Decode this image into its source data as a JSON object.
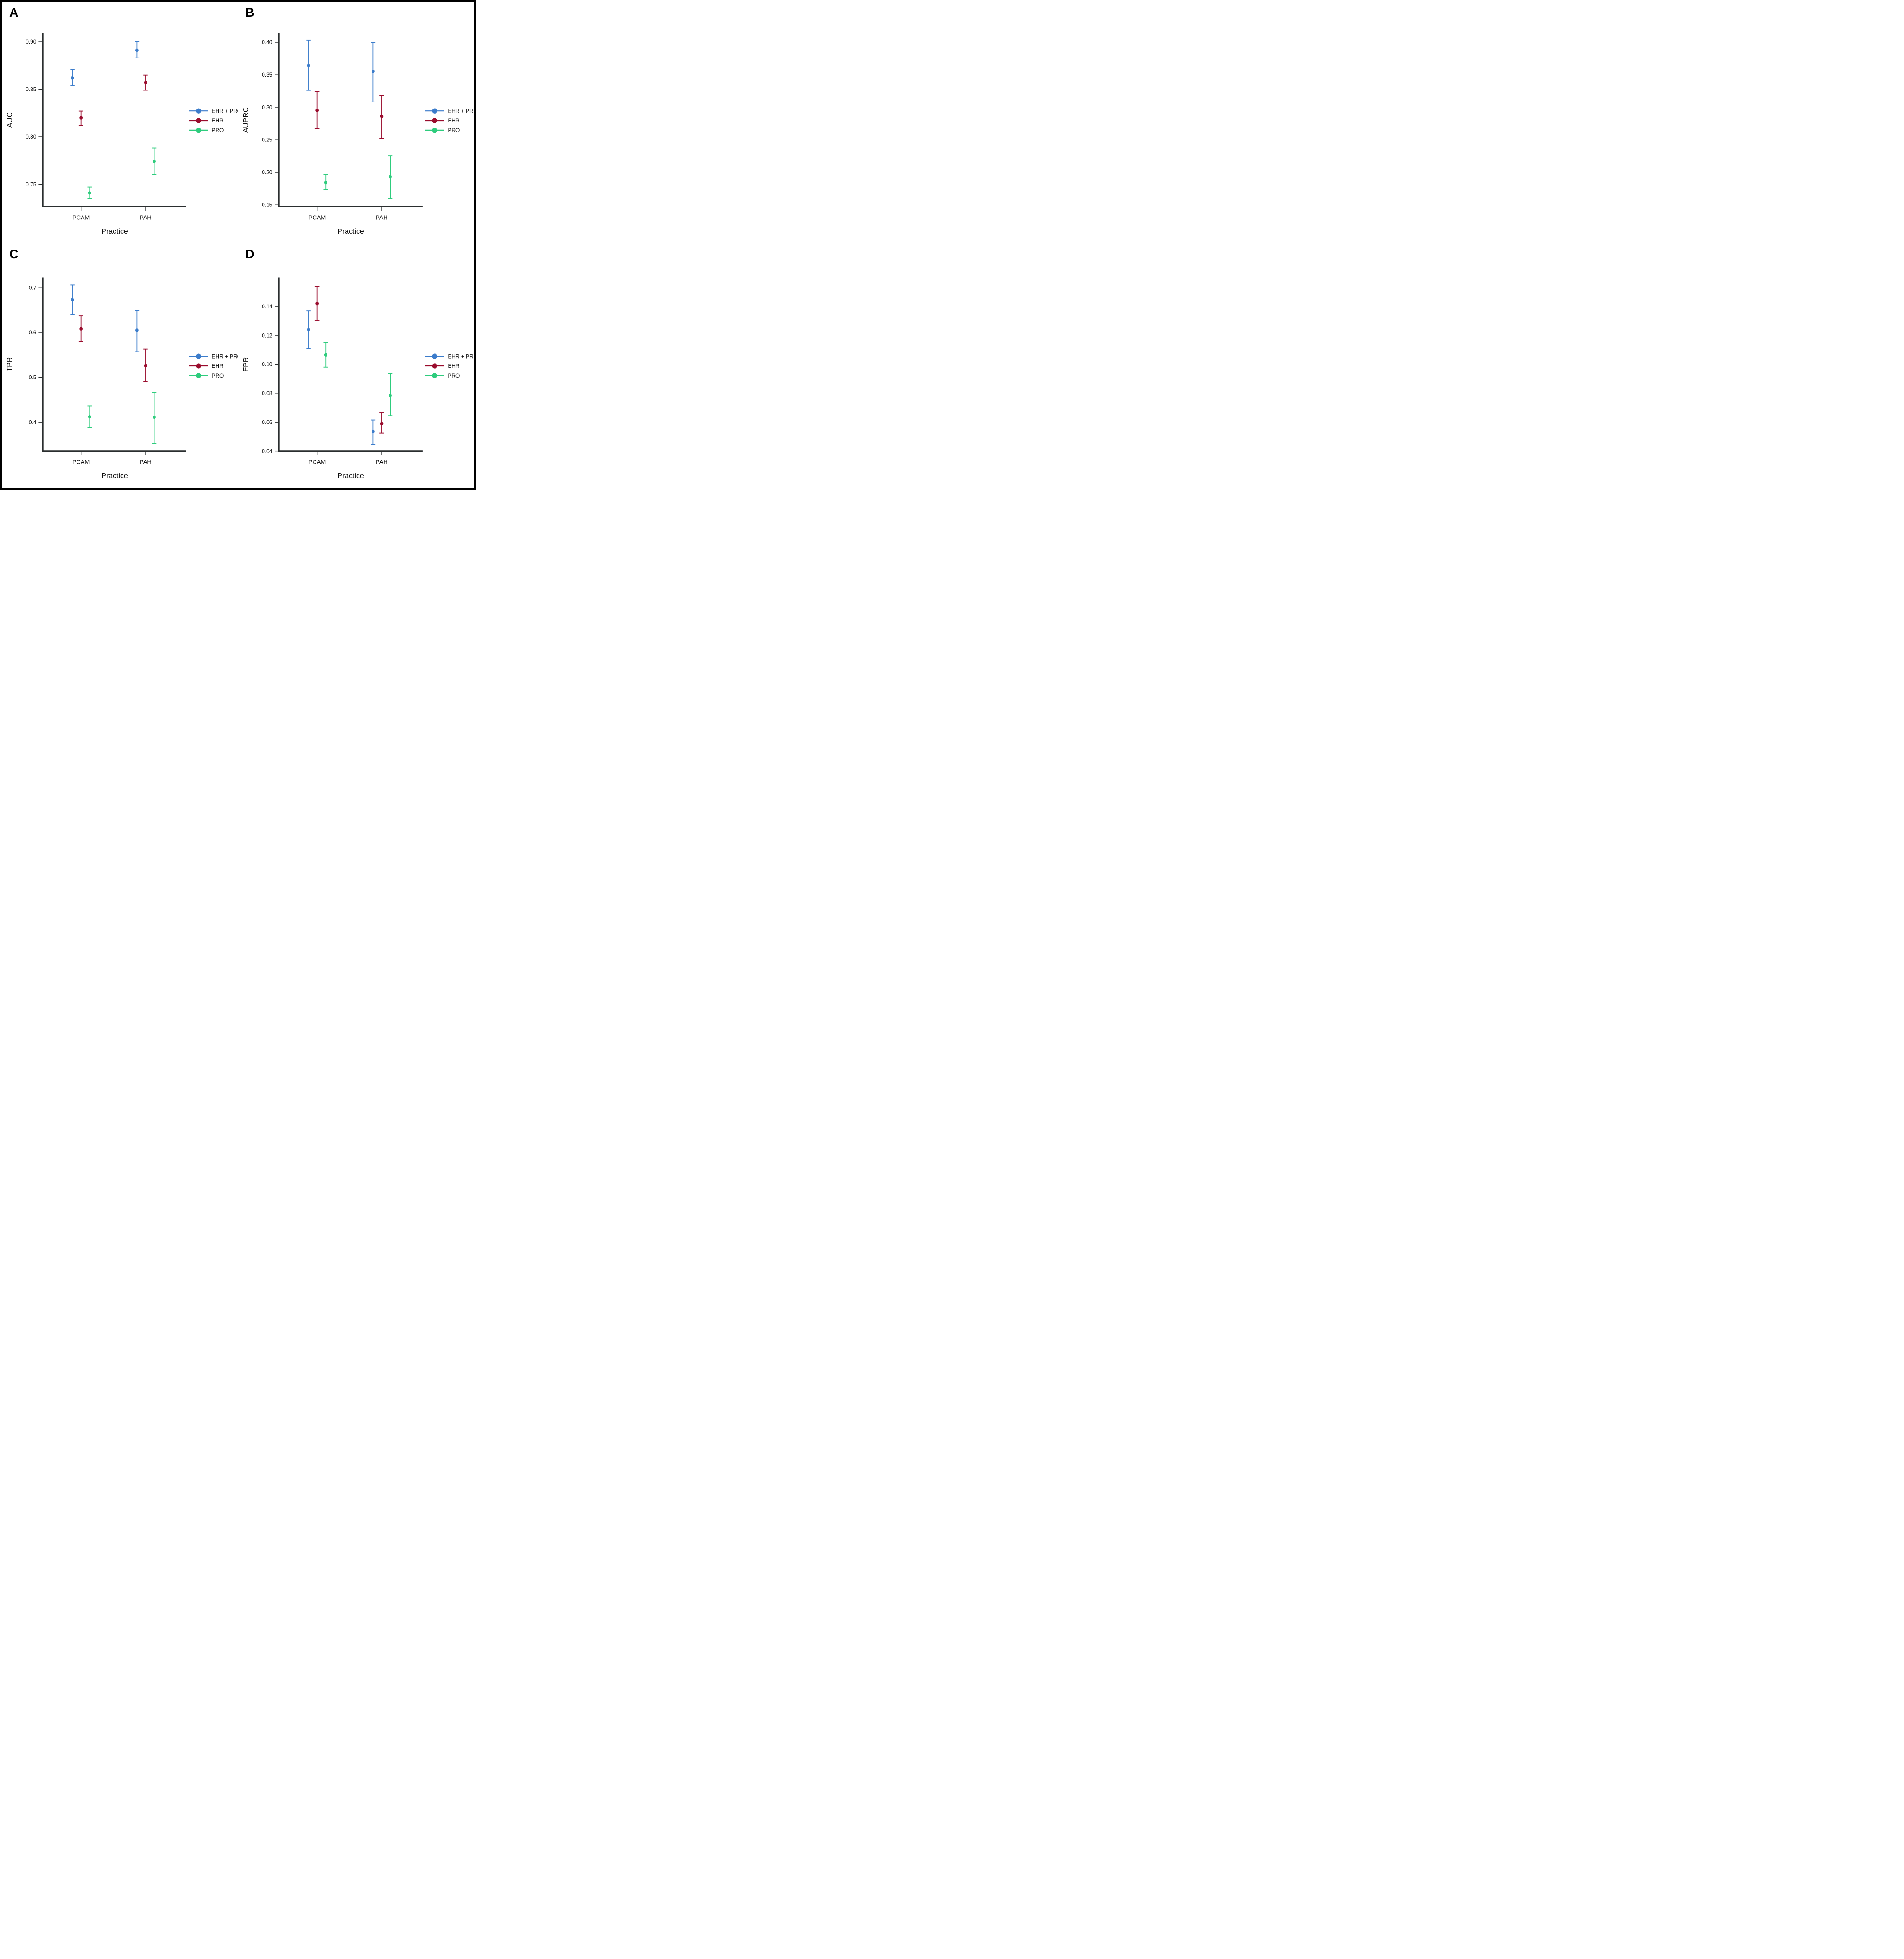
{
  "figure": {
    "background": "#ffffff",
    "frame_color": "#000000"
  },
  "colors": {
    "axis": "#2a2e2f",
    "text": "#0f0f0f",
    "ehr_pro": "#3b7ccb",
    "ehr": "#9a0c2d",
    "pro": "#2ecc7d"
  },
  "legend": {
    "items": [
      {
        "label": "EHR + PRO",
        "color": "#3b7ccb"
      },
      {
        "label": "EHR",
        "color": "#9a0c2d"
      },
      {
        "label": "PRO",
        "color": "#2ecc7d"
      }
    ]
  },
  "chart_data": [
    {
      "panel": "A",
      "type": "scatter",
      "title": "",
      "xlabel": "Practice",
      "ylabel": "AUC",
      "categories": [
        "PCAM",
        "PAH"
      ],
      "ylim": [
        0.7265,
        0.909
      ],
      "yticks": [
        0.9,
        0.85,
        0.8,
        0.75
      ],
      "ytick_labels": [
        "0.90",
        "0.85",
        "0.80",
        "0.75"
      ],
      "grid": false,
      "legend_position": "right",
      "series": [
        {
          "name": "EHR + PRO",
          "color": "#3b7ccb",
          "points": [
            {
              "category": "PCAM",
              "y": 0.862,
              "lo": 0.854,
              "hi": 0.871
            },
            {
              "category": "PAH",
              "y": 0.891,
              "lo": 0.883,
              "hi": 0.9
            }
          ]
        },
        {
          "name": "EHR",
          "color": "#9a0c2d",
          "points": [
            {
              "category": "PCAM",
              "y": 0.82,
              "lo": 0.812,
              "hi": 0.827
            },
            {
              "category": "PAH",
              "y": 0.857,
              "lo": 0.849,
              "hi": 0.865
            }
          ]
        },
        {
          "name": "PRO",
          "color": "#2ecc7d",
          "points": [
            {
              "category": "PCAM",
              "y": 0.741,
              "lo": 0.735,
              "hi": 0.747
            },
            {
              "category": "PAH",
              "y": 0.774,
              "lo": 0.76,
              "hi": 0.788
            }
          ]
        }
      ]
    },
    {
      "panel": "B",
      "type": "scatter",
      "title": "",
      "xlabel": "Practice",
      "ylabel": "AUPRC",
      "categories": [
        "PCAM",
        "PAH"
      ],
      "ylim": [
        0.1468,
        0.414
      ],
      "yticks": [
        0.4,
        0.35,
        0.3,
        0.25,
        0.2,
        0.15
      ],
      "ytick_labels": [
        "0.40",
        "0.35",
        "0.30",
        "0.25",
        "0.20",
        "0.15"
      ],
      "grid": false,
      "legend_position": "right",
      "series": [
        {
          "name": "EHR + PRO",
          "color": "#3b7ccb",
          "points": [
            {
              "category": "PCAM",
              "y": 0.364,
              "lo": 0.326,
              "hi": 0.403
            },
            {
              "category": "PAH",
              "y": 0.355,
              "lo": 0.308,
              "hi": 0.4
            }
          ]
        },
        {
          "name": "EHR",
          "color": "#9a0c2d",
          "points": [
            {
              "category": "PCAM",
              "y": 0.295,
              "lo": 0.267,
              "hi": 0.324
            },
            {
              "category": "PAH",
              "y": 0.286,
              "lo": 0.252,
              "hi": 0.318
            }
          ]
        },
        {
          "name": "PRO",
          "color": "#2ecc7d",
          "points": [
            {
              "category": "PCAM",
              "y": 0.184,
              "lo": 0.173,
              "hi": 0.196
            },
            {
              "category": "PAH",
              "y": 0.193,
              "lo": 0.159,
              "hi": 0.225
            }
          ]
        }
      ]
    },
    {
      "panel": "C",
      "type": "scatter",
      "title": "",
      "xlabel": "Practice",
      "ylabel": "TPR",
      "categories": [
        "PCAM",
        "PAH"
      ],
      "ylim": [
        0.3355,
        0.7225
      ],
      "yticks": [
        0.7,
        0.6,
        0.5,
        0.4
      ],
      "ytick_labels": [
        "0.7",
        "0.6",
        "0.5",
        "0.4"
      ],
      "grid": false,
      "legend_position": "right",
      "series": [
        {
          "name": "EHR + PRO",
          "color": "#3b7ccb",
          "points": [
            {
              "category": "PCAM",
              "y": 0.673,
              "lo": 0.64,
              "hi": 0.706
            },
            {
              "category": "PAH",
              "y": 0.605,
              "lo": 0.557,
              "hi": 0.649
            }
          ]
        },
        {
          "name": "EHR",
          "color": "#9a0c2d",
          "points": [
            {
              "category": "PCAM",
              "y": 0.608,
              "lo": 0.58,
              "hi": 0.637
            },
            {
              "category": "PAH",
              "y": 0.526,
              "lo": 0.491,
              "hi": 0.563
            }
          ]
        },
        {
          "name": "PRO",
          "color": "#2ecc7d",
          "points": [
            {
              "category": "PCAM",
              "y": 0.412,
              "lo": 0.388,
              "hi": 0.436
            },
            {
              "category": "PAH",
              "y": 0.411,
              "lo": 0.352,
              "hi": 0.466
            }
          ]
        }
      ]
    },
    {
      "panel": "D",
      "type": "scatter",
      "title": "",
      "xlabel": "Practice",
      "ylabel": "FPR",
      "categories": [
        "PCAM",
        "PAH"
      ],
      "ylim": [
        0.04,
        0.16
      ],
      "yticks": [
        0.14,
        0.12,
        0.1,
        0.08,
        0.06,
        0.04
      ],
      "ytick_labels": [
        "0.14",
        "0.12",
        "0.10",
        "0.08",
        "0.06",
        "0.04"
      ],
      "grid": false,
      "legend_position": "right",
      "series": [
        {
          "name": "EHR + PRO",
          "color": "#3b7ccb",
          "points": [
            {
              "category": "PCAM",
              "y": 0.124,
              "lo": 0.111,
              "hi": 0.137
            },
            {
              "category": "PAH",
              "y": 0.0535,
              "lo": 0.0445,
              "hi": 0.0615
            }
          ]
        },
        {
          "name": "EHR",
          "color": "#9a0c2d",
          "points": [
            {
              "category": "PCAM",
              "y": 0.142,
              "lo": 0.13,
              "hi": 0.154
            },
            {
              "category": "PAH",
              "y": 0.059,
              "lo": 0.0525,
              "hi": 0.0665
            }
          ]
        },
        {
          "name": "PRO",
          "color": "#2ecc7d",
          "points": [
            {
              "category": "PCAM",
              "y": 0.1065,
              "lo": 0.098,
              "hi": 0.115
            },
            {
              "category": "PAH",
              "y": 0.0785,
              "lo": 0.0645,
              "hi": 0.0935
            }
          ]
        }
      ]
    }
  ]
}
